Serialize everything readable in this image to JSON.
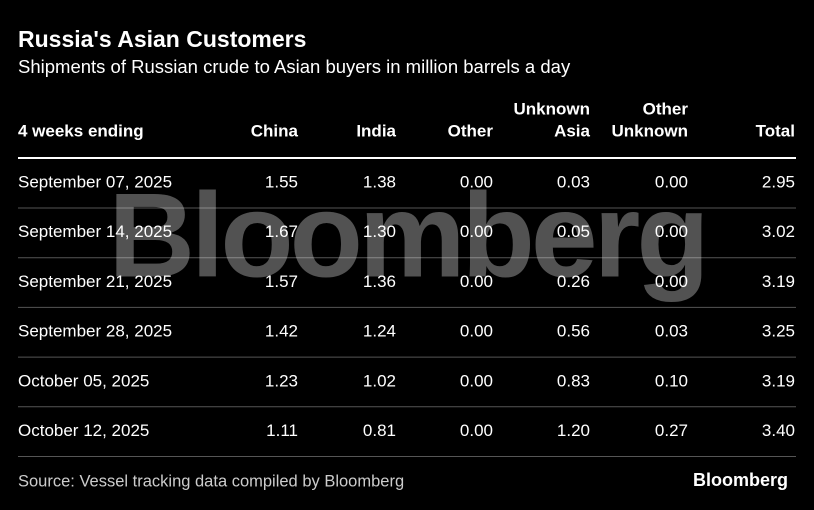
{
  "header": {
    "title": "Russia's Asian Customers",
    "subtitle": "Shipments of Russian crude to Asian buyers in million barrels a day"
  },
  "table": {
    "columns": [
      [
        "4 weeks ending"
      ],
      [
        "China"
      ],
      [
        "India"
      ],
      [
        "Other"
      ],
      [
        "Unknown",
        "Asia"
      ],
      [
        "Other",
        "Unknown"
      ],
      [
        "Total"
      ]
    ],
    "rows": [
      [
        "September 07, 2025",
        "1.55",
        "1.38",
        "0.00",
        "0.03",
        "0.00",
        "2.95"
      ],
      [
        "September 14, 2025",
        "1.67",
        "1.30",
        "0.00",
        "0.05",
        "0.00",
        "3.02"
      ],
      [
        "September 21, 2025",
        "1.57",
        "1.36",
        "0.00",
        "0.26",
        "0.00",
        "3.19"
      ],
      [
        "September 28, 2025",
        "1.42",
        "1.24",
        "0.00",
        "0.56",
        "0.03",
        "3.25"
      ],
      [
        "October 05, 2025",
        "1.23",
        "1.02",
        "0.00",
        "0.83",
        "0.10",
        "3.19"
      ],
      [
        "October 12, 2025",
        "1.11",
        "0.81",
        "0.00",
        "1.20",
        "0.27",
        "3.40"
      ]
    ]
  },
  "watermark": "Bloomberg",
  "footer": {
    "source": "Source: Vessel tracking data compiled by Bloomberg",
    "logo": "Bloomberg"
  }
}
